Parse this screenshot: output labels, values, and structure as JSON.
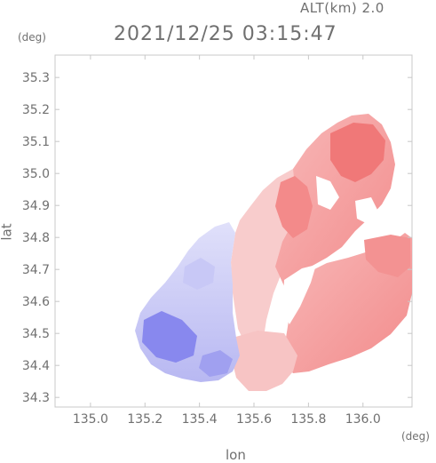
{
  "header": {
    "altitude_label": "ALT(km) 2.0",
    "timestamp": "2021/12/25 03:15:47"
  },
  "chart_data": {
    "type": "heatmap",
    "title": "2021/12/25 03:15:47",
    "subtitle": "ALT(km) 2.0",
    "xlabel": "lon",
    "ylabel": "lat",
    "x_unit": "(deg)",
    "y_unit": "(deg)",
    "xlim": [
      134.87,
      136.18
    ],
    "ylim": [
      34.27,
      35.37
    ],
    "x_ticks": [
      135.0,
      135.2,
      135.4,
      135.6,
      135.8,
      136.0
    ],
    "y_ticks": [
      34.3,
      34.4,
      34.5,
      34.6,
      34.7,
      34.8,
      34.9,
      35.0,
      35.1,
      35.2,
      35.3
    ],
    "x_tick_labels": [
      "135.0",
      "135.2",
      "135.4",
      "135.6",
      "135.8",
      "136.0"
    ],
    "y_tick_labels": [
      "34.3",
      "34.4",
      "34.5",
      "34.6",
      "34.7",
      "34.8",
      "34.9",
      "35.0",
      "35.1",
      "35.2",
      "35.3"
    ],
    "colors": {
      "toward": "#8080f0",
      "away": "#f07070",
      "axis": "#c8c8c8",
      "text": "#707070"
    }
  }
}
